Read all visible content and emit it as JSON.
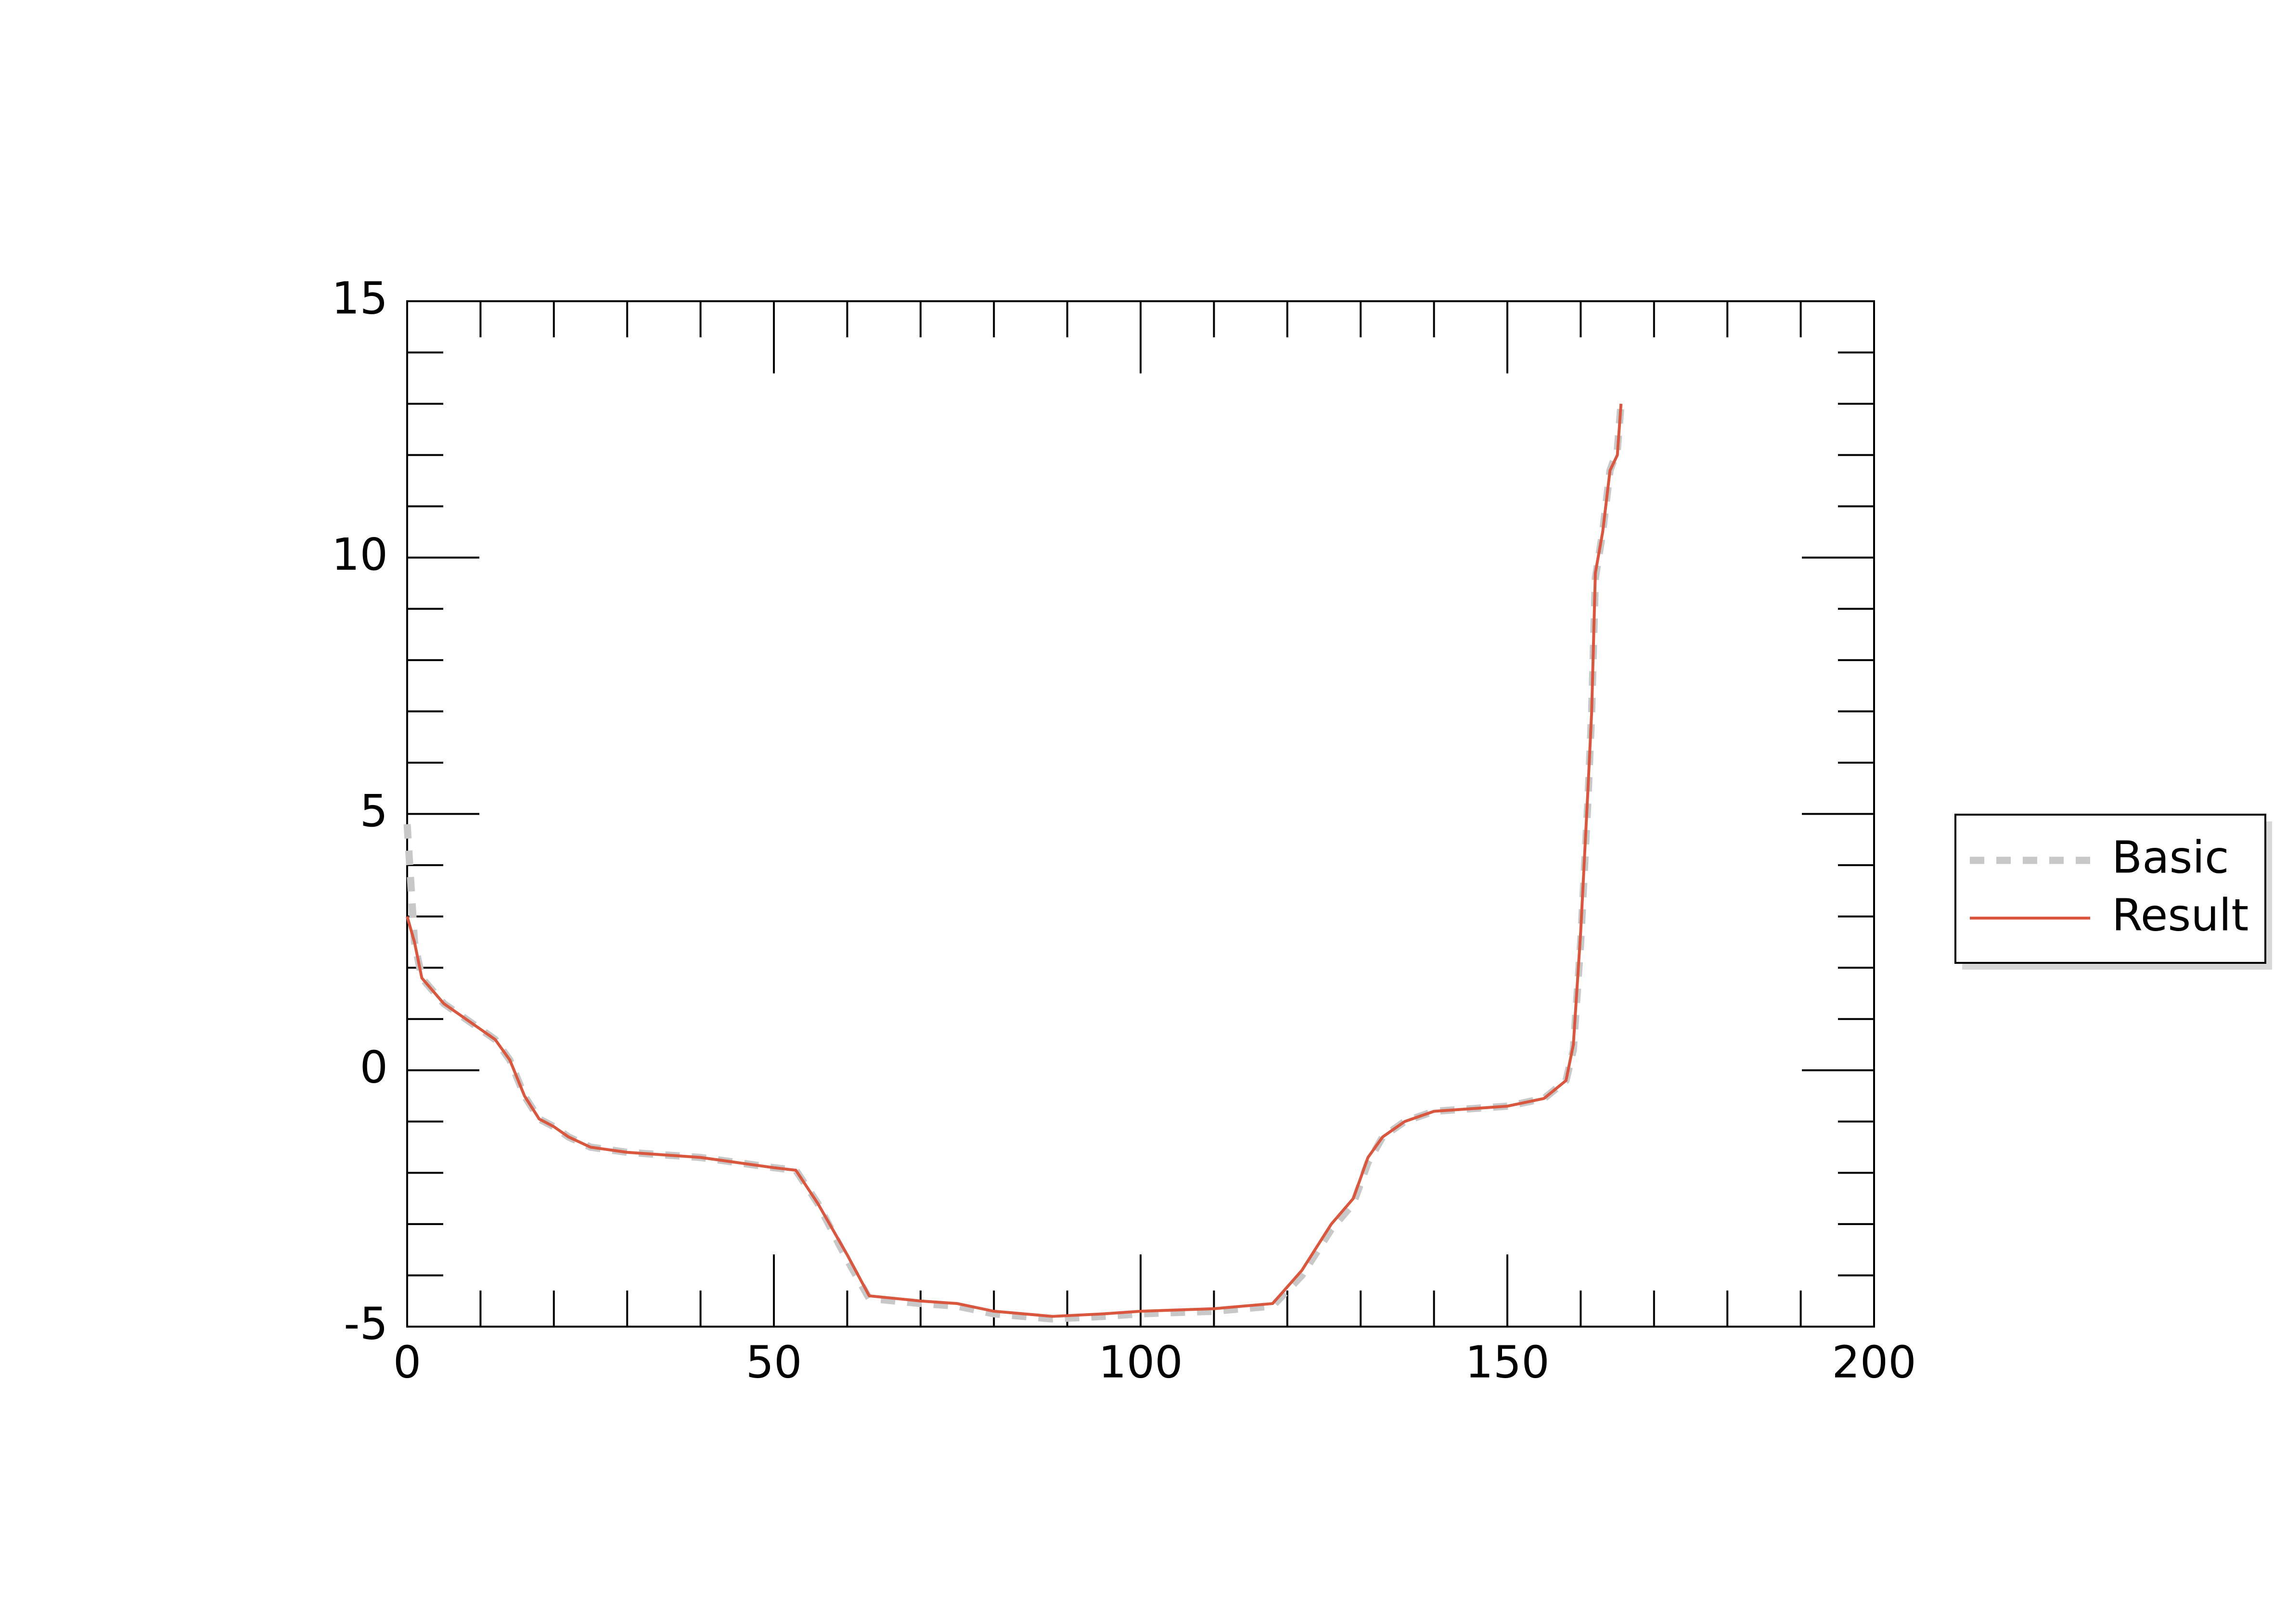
{
  "chart_data": {
    "type": "line",
    "x": [
      0,
      1,
      2,
      5,
      8,
      12,
      14,
      16,
      18,
      20,
      22,
      25,
      30,
      40,
      45,
      50,
      53,
      56,
      60,
      63,
      70,
      75,
      80,
      88,
      95,
      100,
      110,
      118,
      122,
      126,
      129,
      131,
      133,
      136,
      140,
      150,
      155,
      158,
      159,
      160,
      161,
      161.5,
      162,
      163,
      164,
      165,
      165.5
    ],
    "series": [
      {
        "name": "Basic",
        "color": "#c8c8c8",
        "dash": true,
        "values": [
          4.8,
          2.5,
          1.8,
          1.3,
          1.0,
          0.6,
          0.2,
          -0.5,
          -0.95,
          -1.1,
          -1.3,
          -1.5,
          -1.6,
          -1.7,
          -1.8,
          -1.9,
          -1.95,
          -2.6,
          -3.7,
          -4.45,
          -4.55,
          -4.6,
          -4.75,
          -4.85,
          -4.8,
          -4.75,
          -4.7,
          -4.6,
          -4.0,
          -3.1,
          -2.6,
          -1.8,
          -1.3,
          -1.0,
          -0.8,
          -0.7,
          -0.55,
          -0.2,
          0.4,
          2.5,
          5.3,
          7,
          9.6,
          10.5,
          11.7,
          12.1,
          13
        ]
      },
      {
        "name": "Result",
        "color": "#d9573f",
        "dash": false,
        "values": [
          3.0,
          2.5,
          1.8,
          1.3,
          1.0,
          0.6,
          0.2,
          -0.5,
          -0.95,
          -1.1,
          -1.3,
          -1.5,
          -1.6,
          -1.7,
          -1.8,
          -1.9,
          -1.95,
          -2.6,
          -3.6,
          -4.4,
          -4.5,
          -4.55,
          -4.7,
          -4.8,
          -4.75,
          -4.7,
          -4.65,
          -4.55,
          -3.9,
          -3.0,
          -2.5,
          -1.7,
          -1.3,
          -1.0,
          -0.8,
          -0.7,
          -0.55,
          -0.2,
          0.5,
          2.7,
          5.5,
          7,
          9.7,
          10.5,
          11.7,
          12,
          13
        ]
      }
    ],
    "xlim": [
      0,
      200
    ],
    "xticks": [
      0,
      50,
      100,
      150,
      200
    ],
    "ylim": [
      -5,
      15
    ],
    "yticks": [
      -5,
      0,
      5,
      10,
      15
    ],
    "legend": "right"
  }
}
